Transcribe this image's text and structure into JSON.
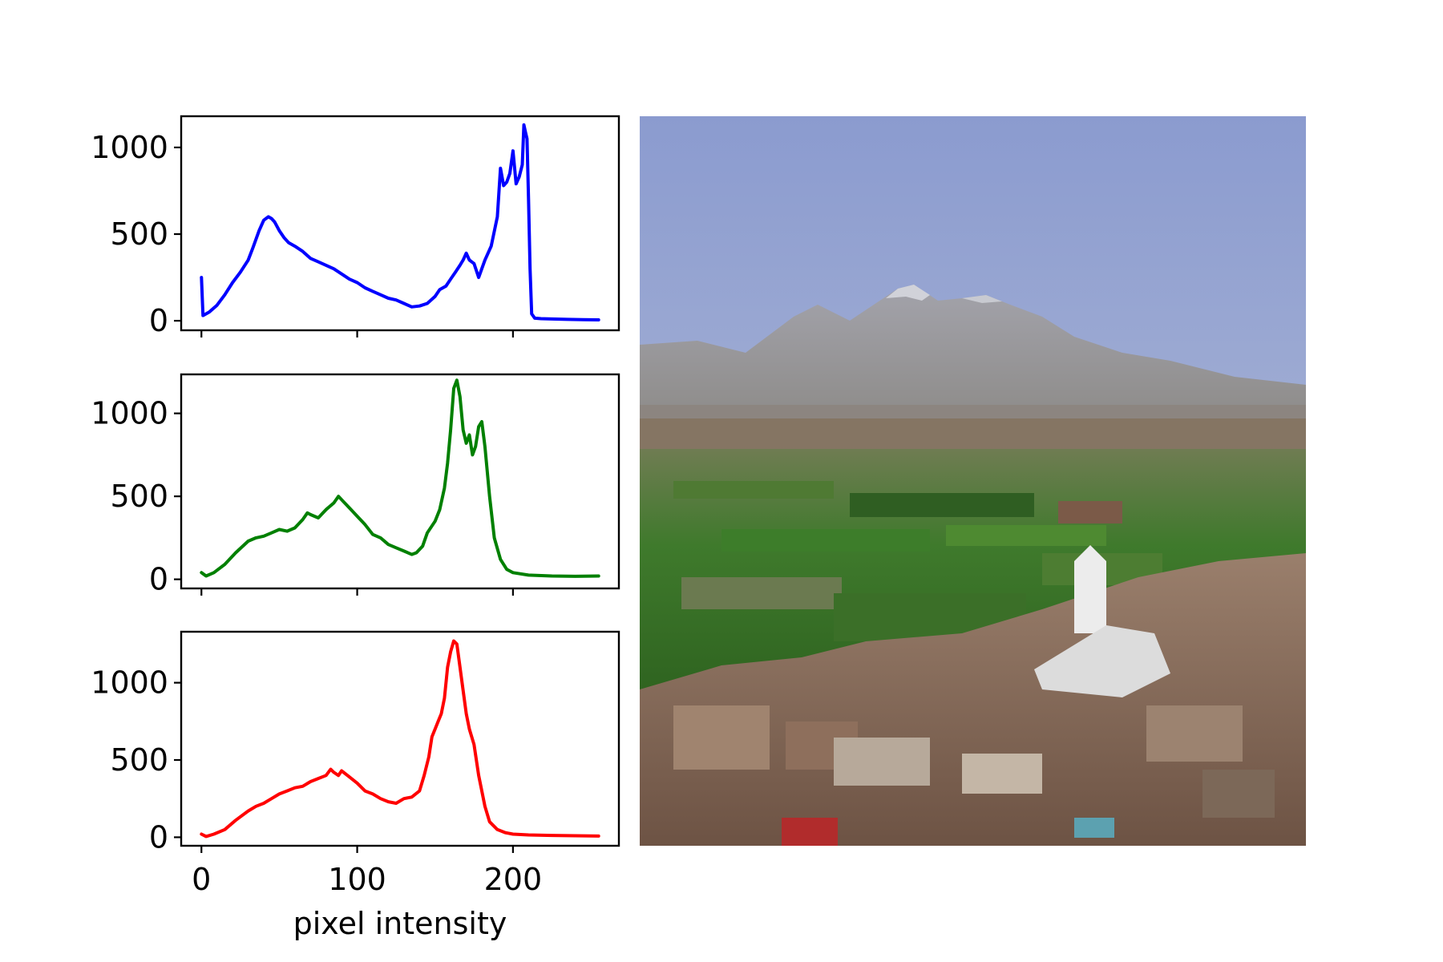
{
  "chart_data": [
    {
      "type": "line",
      "xlabel": "",
      "ylabel": "",
      "xlim": [
        -13,
        268
      ],
      "ylim": [
        -55,
        1180
      ],
      "xticks": [
        0,
        100,
        200
      ],
      "yticks": [
        0,
        500,
        1000
      ],
      "show_x_tick_labels": false,
      "series": [
        {
          "color": "#0000ff",
          "x": [
            0,
            1,
            5,
            10,
            15,
            20,
            25,
            30,
            33,
            37,
            40,
            43,
            45,
            47,
            50,
            53,
            56,
            60,
            65,
            70,
            75,
            80,
            85,
            90,
            95,
            100,
            105,
            110,
            115,
            120,
            125,
            130,
            135,
            140,
            145,
            150,
            153,
            157,
            160,
            163,
            166,
            168,
            170,
            172,
            175,
            178,
            182,
            186,
            190,
            192,
            194,
            196,
            198,
            200,
            202,
            204,
            206,
            207,
            208,
            209,
            210,
            211,
            212,
            214,
            218,
            225,
            235,
            245,
            255
          ],
          "values": [
            250,
            30,
            50,
            90,
            150,
            220,
            280,
            350,
            420,
            520,
            580,
            600,
            590,
            570,
            520,
            480,
            450,
            430,
            400,
            360,
            340,
            320,
            300,
            270,
            240,
            220,
            190,
            170,
            150,
            130,
            120,
            100,
            80,
            85,
            100,
            140,
            180,
            200,
            240,
            280,
            320,
            350,
            390,
            350,
            330,
            250,
            350,
            430,
            600,
            880,
            780,
            800,
            850,
            980,
            790,
            830,
            900,
            1130,
            1090,
            1050,
            700,
            300,
            40,
            15,
            12,
            10,
            8,
            6,
            5
          ]
        }
      ]
    },
    {
      "type": "line",
      "xlabel": "",
      "ylabel": "",
      "xlim": [
        -13,
        268
      ],
      "ylim": [
        -55,
        1235
      ],
      "xticks": [
        0,
        100,
        200
      ],
      "yticks": [
        0,
        500,
        1000
      ],
      "show_x_tick_labels": false,
      "series": [
        {
          "color": "#008000",
          "x": [
            0,
            3,
            8,
            15,
            22,
            30,
            35,
            40,
            45,
            50,
            55,
            60,
            65,
            68,
            70,
            75,
            80,
            85,
            88,
            90,
            95,
            100,
            105,
            110,
            115,
            120,
            125,
            130,
            135,
            138,
            142,
            145,
            150,
            153,
            156,
            158,
            160,
            162,
            164,
            166,
            168,
            170,
            172,
            174,
            176,
            178,
            180,
            182,
            185,
            188,
            192,
            196,
            200,
            210,
            225,
            240,
            255
          ],
          "values": [
            40,
            20,
            40,
            90,
            160,
            230,
            250,
            260,
            280,
            300,
            290,
            310,
            360,
            400,
            390,
            370,
            420,
            460,
            500,
            480,
            430,
            380,
            330,
            270,
            250,
            210,
            190,
            170,
            150,
            160,
            200,
            280,
            350,
            420,
            550,
            700,
            900,
            1150,
            1200,
            1100,
            900,
            820,
            870,
            750,
            800,
            920,
            950,
            800,
            500,
            250,
            120,
            60,
            40,
            25,
            20,
            18,
            20
          ]
        }
      ]
    },
    {
      "type": "line",
      "xlabel": "pixel intensity",
      "ylabel": "",
      "xlim": [
        -13,
        268
      ],
      "ylim": [
        -55,
        1330
      ],
      "xticks": [
        0,
        100,
        200
      ],
      "yticks": [
        0,
        500,
        1000
      ],
      "show_x_tick_labels": true,
      "series": [
        {
          "color": "#ff0000",
          "x": [
            0,
            3,
            8,
            15,
            22,
            30,
            35,
            40,
            45,
            50,
            55,
            60,
            65,
            70,
            75,
            80,
            83,
            85,
            88,
            90,
            95,
            100,
            105,
            110,
            115,
            120,
            125,
            130,
            135,
            140,
            143,
            146,
            148,
            150,
            152,
            154,
            156,
            158,
            160,
            162,
            164,
            166,
            168,
            170,
            172,
            175,
            178,
            182,
            185,
            190,
            195,
            200,
            210,
            225,
            240,
            255
          ],
          "values": [
            20,
            5,
            20,
            50,
            110,
            170,
            200,
            220,
            250,
            280,
            300,
            320,
            330,
            360,
            380,
            400,
            440,
            420,
            400,
            430,
            390,
            350,
            300,
            280,
            250,
            230,
            220,
            250,
            260,
            300,
            400,
            520,
            650,
            700,
            750,
            800,
            900,
            1100,
            1200,
            1270,
            1250,
            1100,
            950,
            800,
            700,
            600,
            400,
            200,
            100,
            50,
            30,
            20,
            15,
            12,
            10,
            8
          ]
        }
      ]
    }
  ]
}
